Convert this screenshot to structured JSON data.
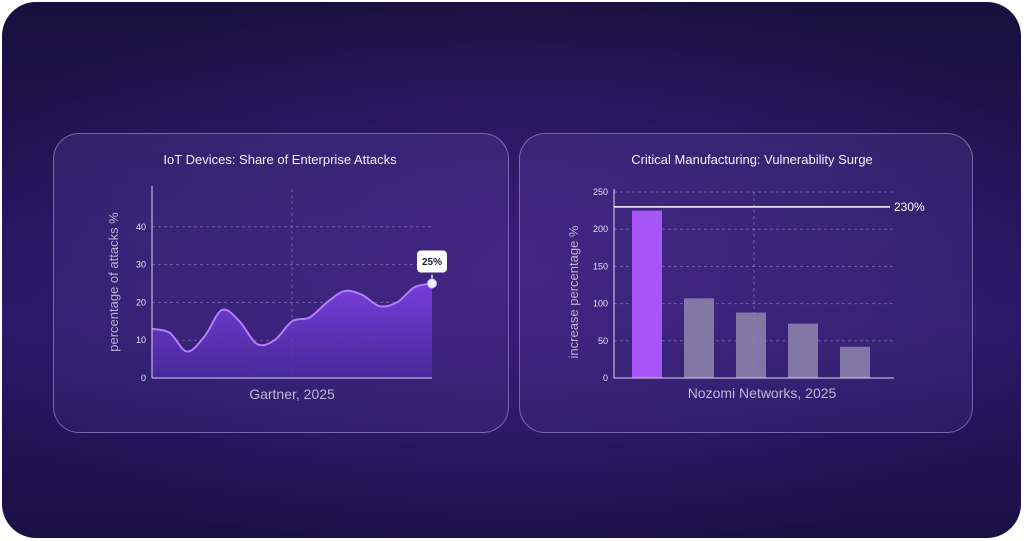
{
  "chart_data": [
    {
      "type": "area",
      "title": "IoT Devices: Share of Enterprise Attacks",
      "xlabel": "Gartner, 2025",
      "ylabel": "percentage of attacks %",
      "ylim": [
        0,
        50
      ],
      "yticks": [
        0,
        10,
        20,
        30,
        40
      ],
      "grid": true,
      "x": [
        0,
        0.5,
        1,
        1.5,
        2,
        2.5,
        3,
        3.5,
        4,
        4.5,
        5,
        5.5,
        6,
        6.5,
        7,
        7.5,
        8
      ],
      "values": [
        13,
        12,
        7,
        11,
        18,
        15,
        9,
        10,
        15,
        16,
        20,
        23,
        22,
        19,
        20,
        24,
        25
      ],
      "callout": {
        "label": "25%",
        "x": 8,
        "value": 25
      },
      "colors": {
        "line": "#b47cff",
        "fill_top": "#7a3fe0",
        "fill_bottom": "#4b2aa0"
      }
    },
    {
      "type": "bar",
      "title": "Critical Manufacturing: Vulnerability Surge",
      "xlabel": "Nozomi Networks, 2025",
      "ylabel": "increase percentage %",
      "ylim": [
        0,
        250
      ],
      "yticks": [
        0,
        50,
        100,
        150,
        200,
        250
      ],
      "grid": true,
      "categories": [
        "",
        "",
        "",
        "",
        ""
      ],
      "values": [
        225,
        107,
        88,
        73,
        42
      ],
      "reference_line": {
        "value": 230,
        "label": "230%"
      },
      "colors": {
        "highlight": "#a855f7",
        "bar": "#8f86ad",
        "reference": "#ffffff"
      }
    }
  ]
}
